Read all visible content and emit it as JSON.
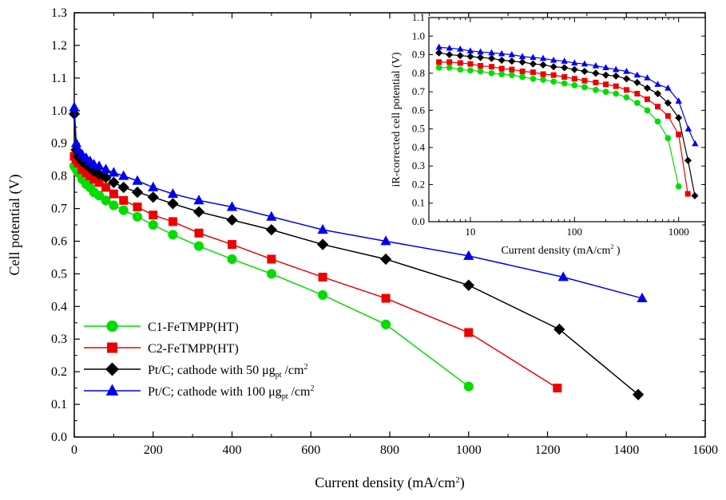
{
  "chart_data": [
    {
      "type": "line",
      "xlabel": "Current density (mA/cm²)",
      "ylabel": "Cell potential (V)",
      "xlim": [
        0,
        1600
      ],
      "ylim": [
        0,
        1.3
      ],
      "x_ticks": [
        "0",
        "200",
        "400",
        "600",
        "800",
        "1000",
        "1200",
        "1400",
        "1600"
      ],
      "y_ticks": [
        "0.0",
        "0.1",
        "0.2",
        "0.3",
        "0.4",
        "0.5",
        "0.6",
        "0.7",
        "0.8",
        "0.9",
        "1.0",
        "1.1",
        "1.2",
        "1.3"
      ],
      "legend_position": "bottom-left",
      "series": [
        {
          "name": "C1-FeTMPP(HT)",
          "color": "#00dd00",
          "marker": "circle",
          "points": [
            [
              0,
              0.83
            ],
            [
              5,
              0.82
            ],
            [
              10,
              0.81
            ],
            [
              20,
              0.79
            ],
            [
              30,
              0.775
            ],
            [
              40,
              0.765
            ],
            [
              50,
              0.75
            ],
            [
              63,
              0.74
            ],
            [
              80,
              0.725
            ],
            [
              100,
              0.71
            ],
            [
              125,
              0.695
            ],
            [
              160,
              0.675
            ],
            [
              200,
              0.65
            ],
            [
              250,
              0.62
            ],
            [
              316,
              0.585
            ],
            [
              400,
              0.545
            ],
            [
              500,
              0.5
            ],
            [
              630,
              0.435
            ],
            [
              790,
              0.345
            ],
            [
              1000,
              0.155
            ]
          ]
        },
        {
          "name": "C2-FeTMPP(HT)",
          "color": "#ee0000",
          "marker": "square",
          "points": [
            [
              0,
              0.86
            ],
            [
              5,
              0.85
            ],
            [
              10,
              0.84
            ],
            [
              20,
              0.82
            ],
            [
              30,
              0.81
            ],
            [
              40,
              0.8
            ],
            [
              50,
              0.79
            ],
            [
              63,
              0.78
            ],
            [
              80,
              0.765
            ],
            [
              100,
              0.745
            ],
            [
              125,
              0.725
            ],
            [
              160,
              0.705
            ],
            [
              200,
              0.68
            ],
            [
              250,
              0.66
            ],
            [
              316,
              0.625
            ],
            [
              400,
              0.59
            ],
            [
              500,
              0.545
            ],
            [
              630,
              0.49
            ],
            [
              790,
              0.425
            ],
            [
              1000,
              0.32
            ],
            [
              1225,
              0.15
            ]
          ]
        },
        {
          "name": "Pt/C; cathode with 50 μg_pt /cm²",
          "color": "#000000",
          "marker": "diamond",
          "points": [
            [
              0,
              0.99
            ],
            [
              5,
              0.88
            ],
            [
              10,
              0.86
            ],
            [
              20,
              0.845
            ],
            [
              30,
              0.835
            ],
            [
              40,
              0.825
            ],
            [
              50,
              0.815
            ],
            [
              63,
              0.805
            ],
            [
              80,
              0.795
            ],
            [
              100,
              0.78
            ],
            [
              125,
              0.765
            ],
            [
              160,
              0.75
            ],
            [
              200,
              0.735
            ],
            [
              250,
              0.715
            ],
            [
              316,
              0.69
            ],
            [
              400,
              0.665
            ],
            [
              500,
              0.635
            ],
            [
              630,
              0.59
            ],
            [
              790,
              0.545
            ],
            [
              1000,
              0.465
            ],
            [
              1230,
              0.33
            ],
            [
              1430,
              0.13
            ]
          ]
        },
        {
          "name": "Pt/C; cathode with 100 μg_pt /cm²",
          "color": "#0000ee",
          "marker": "triangle",
          "points": [
            [
              0,
              1.01
            ],
            [
              5,
              0.9
            ],
            [
              10,
              0.88
            ],
            [
              20,
              0.865
            ],
            [
              30,
              0.855
            ],
            [
              40,
              0.845
            ],
            [
              50,
              0.835
            ],
            [
              63,
              0.83
            ],
            [
              80,
              0.82
            ],
            [
              100,
              0.81
            ],
            [
              125,
              0.8
            ],
            [
              160,
              0.785
            ],
            [
              200,
              0.765
            ],
            [
              250,
              0.745
            ],
            [
              316,
              0.725
            ],
            [
              400,
              0.705
            ],
            [
              500,
              0.675
            ],
            [
              630,
              0.635
            ],
            [
              790,
              0.6
            ],
            [
              1000,
              0.555
            ],
            [
              1240,
              0.49
            ],
            [
              1440,
              0.425
            ]
          ]
        }
      ]
    },
    {
      "type": "line",
      "xlabel": "Current density (mA/cm² )",
      "ylabel": "iR-corrected cell potential (V)",
      "x_scale": "log",
      "xlim": [
        4,
        1800
      ],
      "ylim": [
        0,
        1.1
      ],
      "x_ticks": [
        "10",
        "100",
        "1000"
      ],
      "y_ticks": [
        "0.0",
        "0.1",
        "0.2",
        "0.3",
        "0.4",
        "0.5",
        "0.6",
        "0.7",
        "0.8",
        "0.9",
        "1.0",
        "1.1"
      ],
      "series": [
        {
          "color": "#00dd00",
          "marker": "circle",
          "points": [
            [
              5,
              0.83
            ],
            [
              6.3,
              0.83
            ],
            [
              8,
              0.82
            ],
            [
              10,
              0.815
            ],
            [
              12.5,
              0.81
            ],
            [
              16,
              0.8
            ],
            [
              20,
              0.795
            ],
            [
              25,
              0.79
            ],
            [
              31.6,
              0.78
            ],
            [
              40,
              0.77
            ],
            [
              50,
              0.765
            ],
            [
              63,
              0.755
            ],
            [
              80,
              0.745
            ],
            [
              100,
              0.735
            ],
            [
              125,
              0.725
            ],
            [
              160,
              0.71
            ],
            [
              200,
              0.7
            ],
            [
              250,
              0.69
            ],
            [
              316,
              0.67
            ],
            [
              400,
              0.64
            ],
            [
              500,
              0.6
            ],
            [
              630,
              0.54
            ],
            [
              790,
              0.45
            ],
            [
              1000,
              0.19
            ]
          ]
        },
        {
          "color": "#ee0000",
          "marker": "square",
          "points": [
            [
              5,
              0.86
            ],
            [
              6.3,
              0.86
            ],
            [
              8,
              0.855
            ],
            [
              10,
              0.85
            ],
            [
              12.5,
              0.84
            ],
            [
              16,
              0.835
            ],
            [
              20,
              0.825
            ],
            [
              25,
              0.82
            ],
            [
              31.6,
              0.81
            ],
            [
              40,
              0.805
            ],
            [
              50,
              0.795
            ],
            [
              63,
              0.79
            ],
            [
              80,
              0.78
            ],
            [
              100,
              0.77
            ],
            [
              125,
              0.76
            ],
            [
              160,
              0.75
            ],
            [
              200,
              0.74
            ],
            [
              250,
              0.73
            ],
            [
              316,
              0.71
            ],
            [
              400,
              0.69
            ],
            [
              500,
              0.66
            ],
            [
              630,
              0.62
            ],
            [
              790,
              0.57
            ],
            [
              1000,
              0.47
            ],
            [
              1225,
              0.15
            ]
          ]
        },
        {
          "color": "#000000",
          "marker": "diamond",
          "points": [
            [
              5,
              0.91
            ],
            [
              6.3,
              0.9
            ],
            [
              8,
              0.895
            ],
            [
              10,
              0.89
            ],
            [
              12.5,
              0.885
            ],
            [
              16,
              0.88
            ],
            [
              20,
              0.87
            ],
            [
              25,
              0.865
            ],
            [
              31.6,
              0.86
            ],
            [
              40,
              0.85
            ],
            [
              50,
              0.845
            ],
            [
              63,
              0.835
            ],
            [
              80,
              0.83
            ],
            [
              100,
              0.82
            ],
            [
              125,
              0.81
            ],
            [
              160,
              0.8
            ],
            [
              200,
              0.79
            ],
            [
              250,
              0.785
            ],
            [
              316,
              0.77
            ],
            [
              400,
              0.75
            ],
            [
              500,
              0.72
            ],
            [
              630,
              0.69
            ],
            [
              790,
              0.64
            ],
            [
              1000,
              0.56
            ],
            [
              1230,
              0.33
            ],
            [
              1430,
              0.14
            ]
          ]
        },
        {
          "color": "#0000ee",
          "marker": "triangle",
          "points": [
            [
              5,
              0.94
            ],
            [
              6.3,
              0.935
            ],
            [
              8,
              0.93
            ],
            [
              10,
              0.92
            ],
            [
              12.5,
              0.915
            ],
            [
              16,
              0.91
            ],
            [
              20,
              0.905
            ],
            [
              25,
              0.9
            ],
            [
              31.6,
              0.89
            ],
            [
              40,
              0.885
            ],
            [
              50,
              0.88
            ],
            [
              63,
              0.87
            ],
            [
              80,
              0.865
            ],
            [
              100,
              0.855
            ],
            [
              125,
              0.85
            ],
            [
              160,
              0.84
            ],
            [
              200,
              0.83
            ],
            [
              250,
              0.82
            ],
            [
              316,
              0.81
            ],
            [
              400,
              0.79
            ],
            [
              500,
              0.775
            ],
            [
              630,
              0.74
            ],
            [
              790,
              0.72
            ],
            [
              1000,
              0.65
            ],
            [
              1240,
              0.5
            ],
            [
              1440,
              0.42
            ]
          ]
        }
      ]
    }
  ]
}
